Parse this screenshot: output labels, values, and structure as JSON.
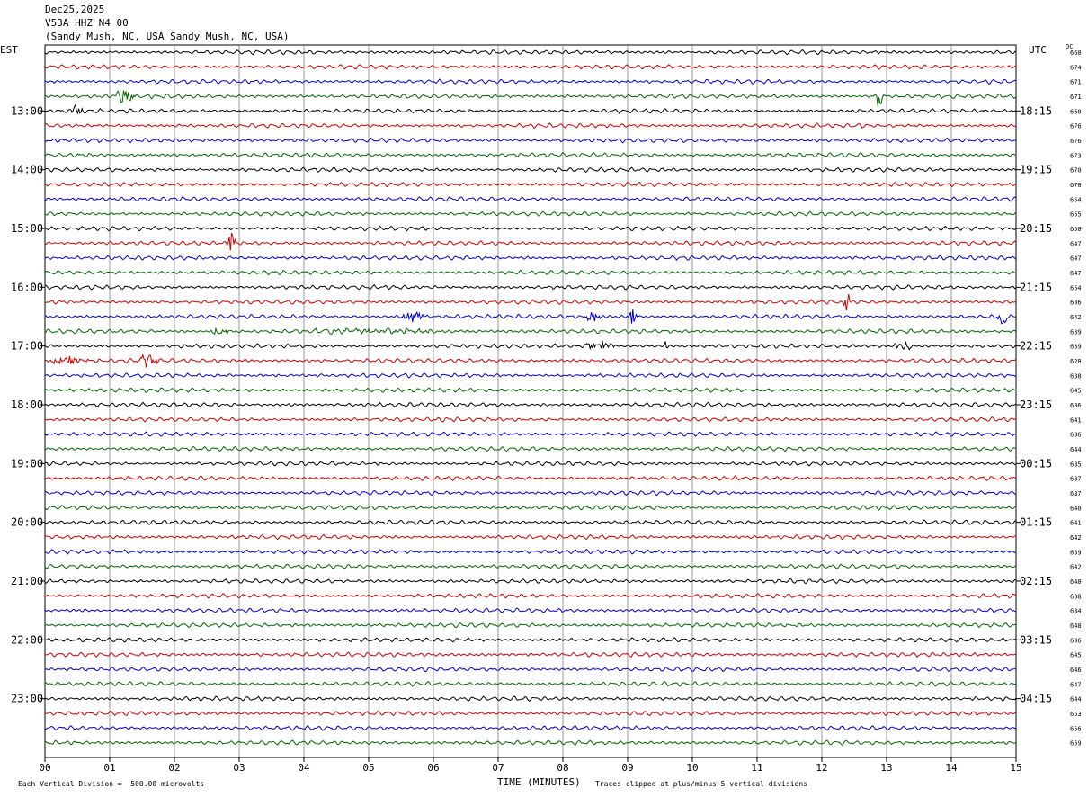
{
  "header": {
    "date": "Dec25,2025",
    "station": "V53A HHZ N4 00",
    "location": "(Sandy Mush, NC, USA Sandy Mush, NC, USA)"
  },
  "labels": {
    "left_zone": "EST",
    "right_zone": "UTC",
    "dc": "DC",
    "xlabel": "TIME (MINUTES)",
    "scale_note": "Each Vertical Division =  500.00 microvolts",
    "clip_note": "Traces clipped at plus/minus 5 vertical divisions"
  },
  "chart_data": {
    "type": "line",
    "title": "V53A HHZ N4 00",
    "xlabel": "TIME (MINUTES)",
    "xlim": [
      0,
      15
    ],
    "x_ticks": [
      "00",
      "01",
      "02",
      "03",
      "04",
      "05",
      "06",
      "07",
      "08",
      "09",
      "10",
      "11",
      "12",
      "13",
      "14",
      "15"
    ],
    "trace_colors": [
      "#000000",
      "#cc0000",
      "#0000cc",
      "#006600"
    ],
    "grid": true,
    "left_time_labels": [
      {
        "row": 4,
        "label": "13:00"
      },
      {
        "row": 8,
        "label": "14:00"
      },
      {
        "row": 12,
        "label": "15:00"
      },
      {
        "row": 16,
        "label": "16:00"
      },
      {
        "row": 20,
        "label": "17:00"
      },
      {
        "row": 24,
        "label": "18:00"
      },
      {
        "row": 28,
        "label": "19:00"
      },
      {
        "row": 32,
        "label": "20:00"
      },
      {
        "row": 36,
        "label": "21:00"
      },
      {
        "row": 40,
        "label": "22:00"
      },
      {
        "row": 44,
        "label": "23:00"
      }
    ],
    "right_time_labels": [
      {
        "row": 4,
        "label": "18:15"
      },
      {
        "row": 8,
        "label": "19:15"
      },
      {
        "row": 12,
        "label": "20:15"
      },
      {
        "row": 16,
        "label": "21:15"
      },
      {
        "row": 20,
        "label": "22:15"
      },
      {
        "row": 24,
        "label": "23:15"
      },
      {
        "row": 28,
        "label": "00:15"
      },
      {
        "row": 32,
        "label": "01:15"
      },
      {
        "row": 36,
        "label": "02:15"
      },
      {
        "row": 40,
        "label": "03:15"
      },
      {
        "row": 44,
        "label": "04:15"
      }
    ],
    "dc_offsets": [
      "660",
      "674",
      "671",
      "671",
      "660",
      "676",
      "676",
      "673",
      "670",
      "670",
      "654",
      "655",
      "650",
      "647",
      "647",
      "647",
      "654",
      "636",
      "642",
      "639",
      "639",
      "628",
      "638",
      "645",
      "636",
      "641",
      "636",
      "644",
      "635",
      "637",
      "637",
      "640",
      "641",
      "642",
      "639",
      "642",
      "640",
      "638",
      "634",
      "640",
      "636",
      "645",
      "646",
      "647",
      "644",
      "653",
      "656",
      "659"
    ],
    "events": [
      {
        "row": 3,
        "start": 1.0,
        "end": 1.55,
        "amp": 6
      },
      {
        "row": 3,
        "start": 12.8,
        "end": 13.0,
        "amp": 14
      },
      {
        "row": 4,
        "start": 0.4,
        "end": 0.65,
        "amp": 8
      },
      {
        "row": 13,
        "start": 2.8,
        "end": 3.0,
        "amp": 12
      },
      {
        "row": 17,
        "start": 12.3,
        "end": 12.5,
        "amp": 12
      },
      {
        "row": 18,
        "start": 5.5,
        "end": 6.0,
        "amp": 6
      },
      {
        "row": 18,
        "start": 8.3,
        "end": 8.7,
        "amp": 5
      },
      {
        "row": 18,
        "start": 9.0,
        "end": 9.2,
        "amp": 9
      },
      {
        "row": 18,
        "start": 14.7,
        "end": 14.95,
        "amp": 10
      },
      {
        "row": 19,
        "start": 2.5,
        "end": 3.0,
        "amp": 4
      },
      {
        "row": 19,
        "start": 3.5,
        "end": 7.5,
        "amp": 2
      },
      {
        "row": 20,
        "start": 8.3,
        "end": 9.0,
        "amp": 6
      },
      {
        "row": 20,
        "start": 9.55,
        "end": 9.65,
        "amp": 8
      },
      {
        "row": 20,
        "start": 13.1,
        "end": 13.5,
        "amp": 8
      },
      {
        "row": 21,
        "start": 0.0,
        "end": 0.9,
        "amp": 4
      },
      {
        "row": 21,
        "start": 1.4,
        "end": 1.9,
        "amp": 6
      }
    ]
  }
}
